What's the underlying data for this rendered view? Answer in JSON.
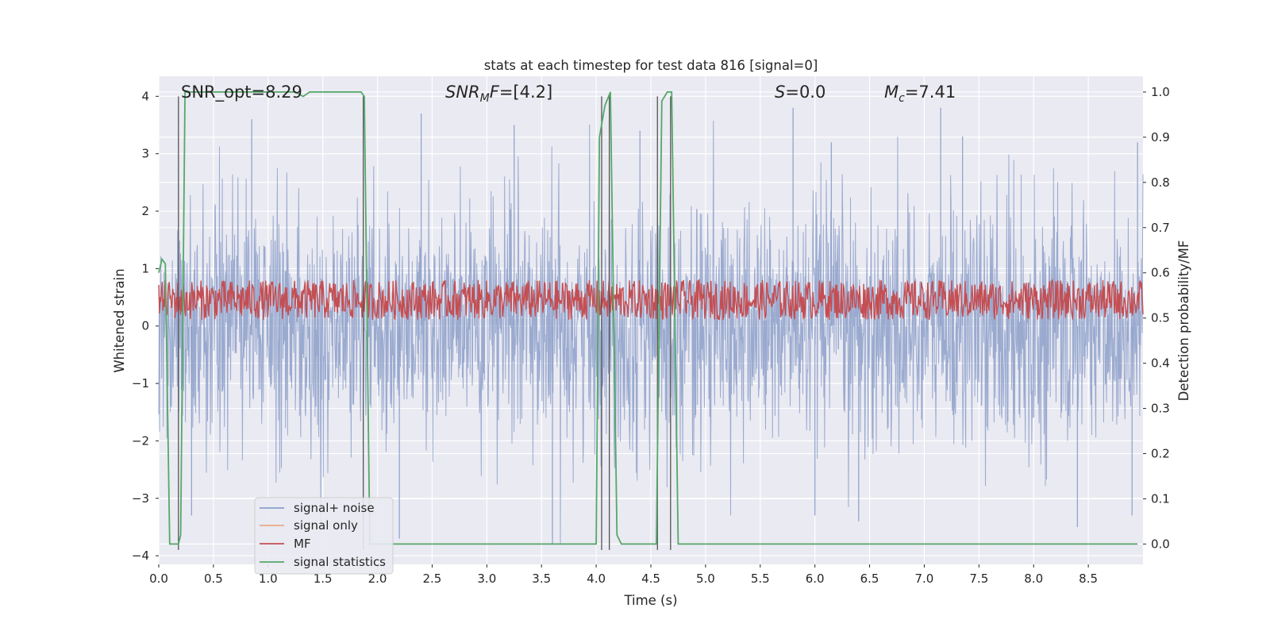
{
  "chart_data": {
    "type": "line",
    "title": "stats at each timestep for test data 816 [signal=0]",
    "xlabel": "Time (s)",
    "ylabel": "Whitened strain",
    "ylabel_right": "Detection probability/MF",
    "xlim": [
      0.0,
      9.0
    ],
    "ylim": [
      -4.15,
      4.35
    ],
    "ylim_right": [
      -0.045,
      1.035
    ],
    "x_ticks": [
      0.0,
      0.5,
      1.0,
      1.5,
      2.0,
      2.5,
      3.0,
      3.5,
      4.0,
      4.5,
      5.0,
      5.5,
      6.0,
      6.5,
      7.0,
      7.5,
      8.0,
      8.5
    ],
    "x_tick_labels": [
      "0.0",
      "0.5",
      "1.0",
      "1.5",
      "2.0",
      "2.5",
      "3.0",
      "3.5",
      "4.0",
      "4.5",
      "5.0",
      "5.5",
      "6.0",
      "6.5",
      "7.0",
      "7.5",
      "8.0",
      "8.5"
    ],
    "y_ticks": [
      -4,
      -3,
      -2,
      -1,
      0,
      1,
      2,
      3,
      4
    ],
    "y_tick_labels": [
      "−4",
      "−3",
      "−2",
      "−1",
      "0",
      "1",
      "2",
      "3",
      "4"
    ],
    "y_right_ticks": [
      0.0,
      0.1,
      0.2,
      0.3,
      0.4,
      0.5,
      0.6,
      0.7,
      0.8,
      0.9,
      1.0
    ],
    "y_right_tick_labels": [
      "0.0",
      "0.1",
      "0.2",
      "0.3",
      "0.4",
      "0.5",
      "0.6",
      "0.7",
      "0.8",
      "0.9",
      "1.0"
    ],
    "grid": true,
    "legend_position": "lower-left",
    "annotations": {
      "snr_opt": "SNR_opt=8.29",
      "snr_mf_label": "SNR",
      "snr_mf_sub": "M",
      "snr_mf_value": "F=[4.2]",
      "s_label": "S",
      "s_value": "=0.0",
      "mc_label": "M",
      "mc_sub": "c",
      "mc_value": "=7.41"
    },
    "series": [
      {
        "name": "signal+ noise",
        "color": "#8c9fc9",
        "description_axis": "left",
        "envelope": {
          "typical_abs_range": [
            -2.5,
            2.5
          ],
          "max": 3.8,
          "min": -3.8,
          "spikes": [
            {
              "x": 0.85,
              "y": 3.6
            },
            {
              "x": 2.4,
              "y": 3.7
            },
            {
              "x": 3.25,
              "y": 3.5
            },
            {
              "x": 4.4,
              "y": 3.4
            },
            {
              "x": 5.8,
              "y": 3.8
            },
            {
              "x": 6.15,
              "y": 3.2
            },
            {
              "x": 7.15,
              "y": 3.8
            },
            {
              "x": 7.35,
              "y": 3.3
            },
            {
              "x": 8.95,
              "y": 3.2
            },
            {
              "x": 0.3,
              "y": -3.3
            },
            {
              "x": 2.2,
              "y": -3.7
            },
            {
              "x": 3.6,
              "y": -3.8
            },
            {
              "x": 6.0,
              "y": -3.3
            },
            {
              "x": 6.4,
              "y": -3.4
            },
            {
              "x": 8.4,
              "y": -3.5
            },
            {
              "x": 8.9,
              "y": -3.3
            }
          ]
        }
      },
      {
        "name": "signal only",
        "color": "#e8a98a",
        "description_axis": "left",
        "values_note": "flat at 0 (not visible)"
      },
      {
        "name": "MF",
        "color": "#c44e52",
        "description_axis": "right",
        "band": [
          0.5,
          0.58
        ]
      },
      {
        "name": "signal statistics",
        "color": "#55a868",
        "description_axis": "right",
        "x": [
          0.0,
          0.03,
          0.06,
          0.1,
          0.18,
          0.2,
          0.24,
          0.3,
          0.6,
          1.0,
          1.25,
          1.32,
          1.38,
          1.55,
          1.85,
          1.88,
          1.93,
          2.0,
          2.5,
          3.0,
          3.5,
          4.0,
          4.03,
          4.08,
          4.13,
          4.19,
          4.23,
          4.28,
          4.4,
          4.55,
          4.6,
          4.65,
          4.69,
          4.75,
          4.82,
          5.0,
          6.0,
          7.0,
          8.0,
          8.95
        ],
        "y": [
          0.6,
          0.63,
          0.62,
          0.0,
          0.0,
          0.02,
          1.0,
          1.0,
          1.0,
          1.0,
          1.0,
          0.99,
          1.0,
          1.0,
          1.0,
          0.99,
          0.0,
          0.0,
          0.0,
          0.0,
          0.0,
          0.0,
          0.9,
          0.97,
          1.0,
          0.02,
          0.0,
          0.0,
          0.0,
          0.0,
          0.98,
          1.0,
          1.0,
          0.0,
          0.0,
          0.0,
          0.0,
          0.0,
          0.0,
          0.0
        ]
      }
    ],
    "vertical_markers": [
      0.18,
      1.87,
      4.05,
      4.12,
      4.56,
      4.68
    ]
  }
}
